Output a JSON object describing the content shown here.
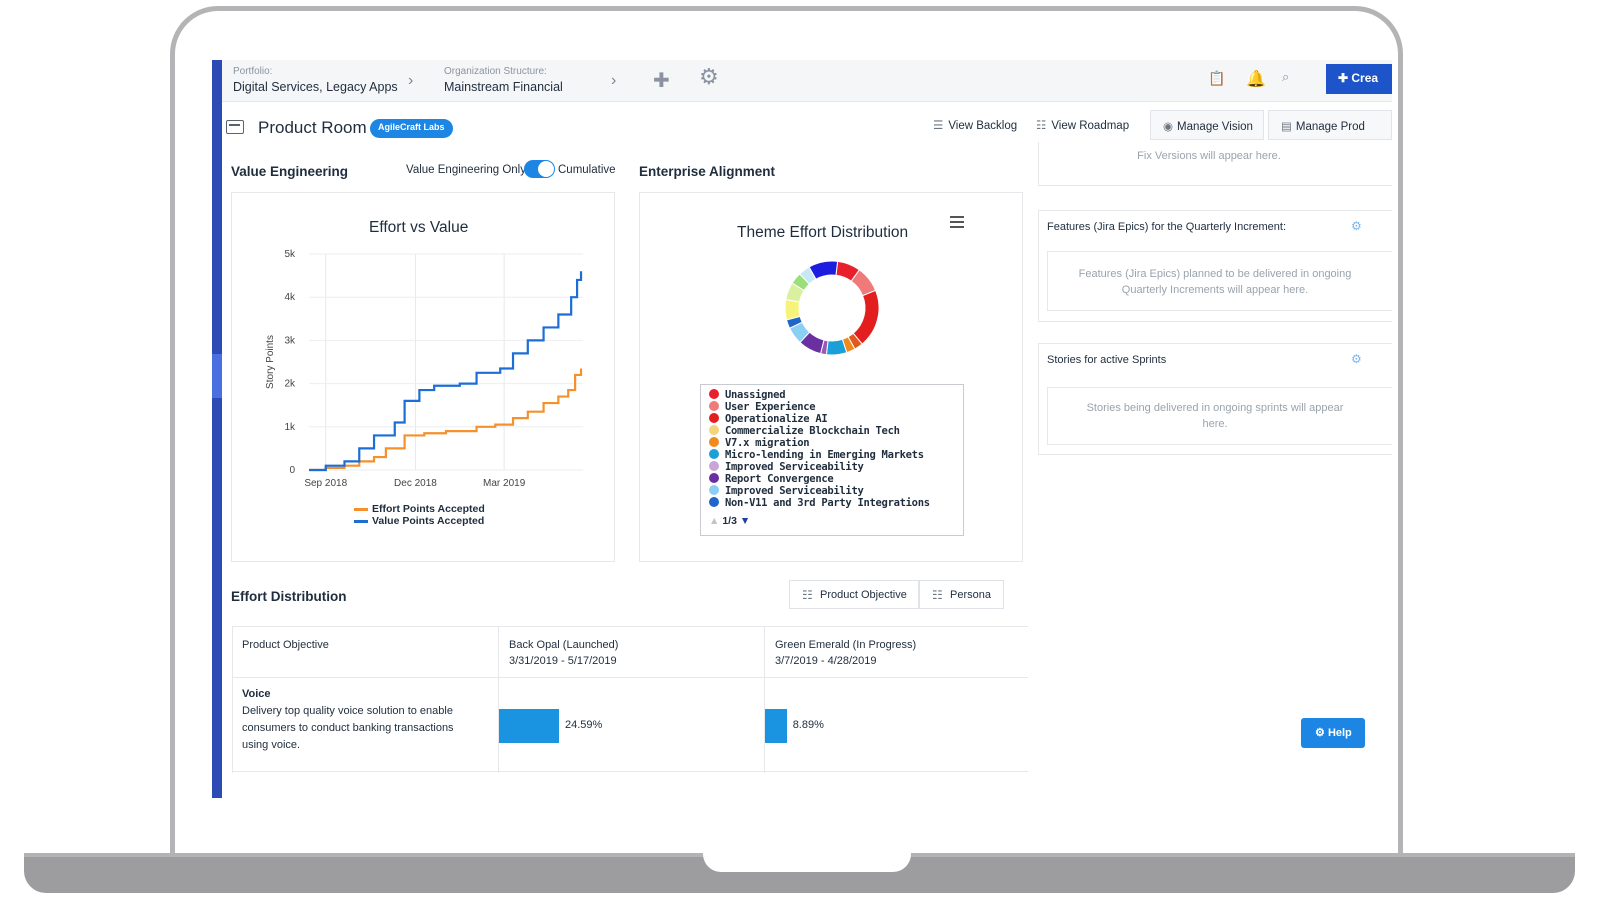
{
  "topbar": {
    "portfolio_label": "Portfolio:",
    "portfolio_value": "Digital Services, Legacy Apps",
    "org_label": "Organization Structure:",
    "org_value": "Mainstream Financial",
    "create_label": "Crea"
  },
  "header": {
    "title": "Product Room",
    "badge": "AgileCraft Labs",
    "view_backlog": "View Backlog",
    "view_roadmap": "View Roadmap",
    "manage_vision": "Manage Vision",
    "manage_prod": "Manage Prod"
  },
  "value_engineering": {
    "title": "Value Engineering",
    "toggle_left": "Value Engineering Only",
    "toggle_right": "Cumulative",
    "toggle_on": true
  },
  "enterprise_alignment": {
    "title": "Enterprise Alignment"
  },
  "chart_data": [
    {
      "type": "line",
      "title": "Effort vs Value",
      "ylabel": "Story Points",
      "xlabel": "",
      "x_ticks": [
        "Sep 2018",
        "Dec 2018",
        "Mar 2019"
      ],
      "y_ticks": [
        "0",
        "1k",
        "2k",
        "3k",
        "4k",
        "5k"
      ],
      "ylim": [
        0,
        5000
      ],
      "xlim": [
        "2018-08-15",
        "2019-05-20"
      ],
      "grid": true,
      "legend_position": "bottom",
      "series": [
        {
          "name": "Effort Points Accepted",
          "color": "#f5902a",
          "points": [
            [
              "2018-08-15",
              0
            ],
            [
              "2018-09-01",
              50
            ],
            [
              "2018-09-20",
              100
            ],
            [
              "2018-10-05",
              200
            ],
            [
              "2018-10-20",
              300
            ],
            [
              "2018-11-01",
              500
            ],
            [
              "2018-11-20",
              800
            ],
            [
              "2018-12-10",
              850
            ],
            [
              "2019-01-01",
              900
            ],
            [
              "2019-02-01",
              1000
            ],
            [
              "2019-02-20",
              1050
            ],
            [
              "2019-03-10",
              1200
            ],
            [
              "2019-03-25",
              1350
            ],
            [
              "2019-04-10",
              1550
            ],
            [
              "2019-04-25",
              1700
            ],
            [
              "2019-05-05",
              1850
            ],
            [
              "2019-05-12",
              2200
            ],
            [
              "2019-05-18",
              2350
            ]
          ]
        },
        {
          "name": "Value Points Accepted",
          "color": "#1c6ed6",
          "points": [
            [
              "2018-08-15",
              0
            ],
            [
              "2018-09-01",
              100
            ],
            [
              "2018-09-20",
              200
            ],
            [
              "2018-10-05",
              500
            ],
            [
              "2018-10-20",
              800
            ],
            [
              "2018-11-10",
              1100
            ],
            [
              "2018-11-20",
              1600
            ],
            [
              "2018-12-05",
              1850
            ],
            [
              "2018-12-20",
              1950
            ],
            [
              "2019-01-15",
              2000
            ],
            [
              "2019-02-01",
              2250
            ],
            [
              "2019-02-25",
              2350
            ],
            [
              "2019-03-10",
              2700
            ],
            [
              "2019-03-25",
              3000
            ],
            [
              "2019-04-10",
              3300
            ],
            [
              "2019-04-25",
              3600
            ],
            [
              "2019-05-08",
              4000
            ],
            [
              "2019-05-14",
              4400
            ],
            [
              "2019-05-18",
              4600
            ]
          ]
        }
      ]
    },
    {
      "type": "pie",
      "title": "Theme Effort Distribution",
      "legend_position": "bottom",
      "slices": [
        {
          "label": "Unassigned",
          "color": "#e8202d",
          "value": 8
        },
        {
          "label": "User Experience",
          "color": "#f07a7a",
          "value": 9
        },
        {
          "label": "Operationalize AI",
          "color": "#e31e1e",
          "value": 20
        },
        {
          "label": "Commercialize Blockchain Tech",
          "color": "#e05a1e",
          "value": 3
        },
        {
          "label": "V7.x migration",
          "color": "#f08a1e",
          "value": 3
        },
        {
          "label": "Micro-lending in Emerging Markets",
          "color": "#1aa0d8",
          "value": 7
        },
        {
          "label": "Improved Serviceability",
          "color": "#9b59b6",
          "value": 2
        },
        {
          "label": "Report Convergence",
          "color": "#6a2fa0",
          "value": 8
        },
        {
          "label": "Improved Serviceability",
          "color": "#8ccff5",
          "value": 6
        },
        {
          "label": "Non-V11 and 3rd Party Integrations",
          "color": "#1e66c9",
          "value": 3
        },
        {
          "label": "",
          "color": "#f6f27a",
          "value": 7
        },
        {
          "label": "",
          "color": "#d8f0a0",
          "value": 6
        },
        {
          "label": "",
          "color": "#9adf7a",
          "value": 4
        },
        {
          "label": "",
          "color": "#c9e8f5",
          "value": 4
        },
        {
          "label": "",
          "color": "#1d1de0",
          "value": 10
        }
      ],
      "legend_items": [
        {
          "label": "Unassigned",
          "color": "#e8202d"
        },
        {
          "label": "User Experience",
          "color": "#f07a7a"
        },
        {
          "label": "Operationalize AI",
          "color": "#e31e1e"
        },
        {
          "label": "Commercialize Blockchain Tech",
          "color": "#f5d37a"
        },
        {
          "label": "V7.x migration",
          "color": "#f08a1e"
        },
        {
          "label": "Micro-lending in Emerging Markets",
          "color": "#1aa0d8"
        },
        {
          "label": "Improved Serviceability",
          "color": "#c9a6d6"
        },
        {
          "label": "Report Convergence",
          "color": "#6a2fa0"
        },
        {
          "label": "Improved Serviceability",
          "color": "#8ccff5"
        },
        {
          "label": "Non-V11 and 3rd Party Integrations",
          "color": "#1e66c9"
        }
      ],
      "pager": "1/3"
    }
  ],
  "right_column": {
    "fix_versions_placeholder": "Fix Versions will appear here.",
    "features_title": "Features (Jira Epics) for the Quarterly Increment:",
    "features_placeholder_1": "Features (Jira Epics) planned to be delivered in ongoing",
    "features_placeholder_2": "Quarterly Increments will appear here.",
    "stories_title": "Stories for active Sprints",
    "stories_placeholder_1": "Stories being delivered in ongoing sprints will appear",
    "stories_placeholder_2": "here."
  },
  "effort_distribution": {
    "title": "Effort Distribution",
    "btn_product_objective": "Product Objective",
    "btn_persona": "Persona",
    "col_header_0": "Product Objective",
    "col_header_1_name": "Back Opal (Launched)",
    "col_header_1_dates": "3/31/2019 - 5/17/2019",
    "col_header_2_name": "Green Emerald (In Progress)",
    "col_header_2_dates": "3/7/2019 - 4/28/2019",
    "row_title": "Voice",
    "row_desc_1": "Delivery top quality voice solution to enable",
    "row_desc_2": "consumers to conduct banking transactions",
    "row_desc_3": "using voice.",
    "row_val_1": "24.59%",
    "row_val_1_num": 24.59,
    "row_val_2": "8.89%",
    "row_val_2_num": 8.89
  },
  "help_label": "Help"
}
